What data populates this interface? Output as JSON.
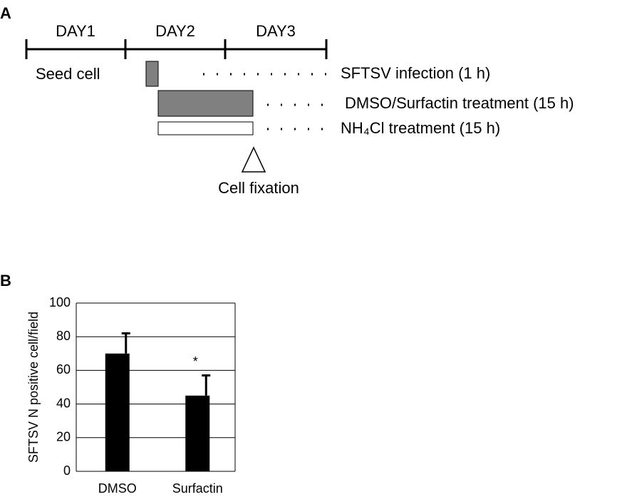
{
  "panel_a": {
    "label": "A",
    "days": [
      "DAY1",
      "DAY2",
      "DAY3"
    ],
    "steps": [
      "Seed cell",
      "SFTSV infection (1 h)",
      "DMSO/Surfactin treatment (15 h)",
      "NH₄Cl treatment (15 h)"
    ],
    "fixation": "Cell fixation"
  },
  "panel_b": {
    "label": "B"
  },
  "chart_data": {
    "type": "bar",
    "ylabel": "SFTSV N positive cell/field",
    "categories": [
      "DMSO",
      "Surfactin"
    ],
    "values": [
      70,
      45
    ],
    "errors": [
      12,
      12
    ],
    "annotations": [
      {
        "category": 1,
        "text": "*"
      }
    ],
    "color": "#000000",
    "ylim": [
      0,
      100
    ],
    "yticks": [
      0,
      20,
      40,
      60,
      80,
      100
    ],
    "grid": true
  }
}
